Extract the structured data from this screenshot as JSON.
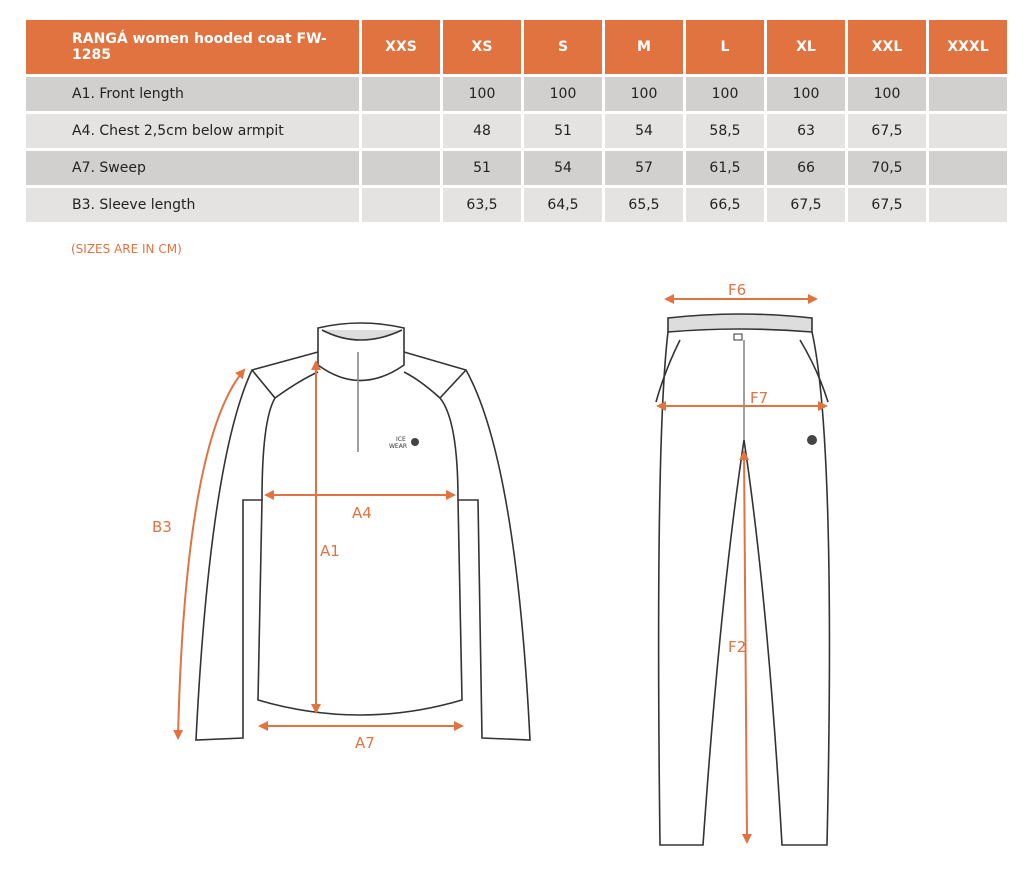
{
  "table": {
    "title": "RANGÁ women hooded coat FW-1285",
    "sizes": [
      "XXS",
      "XS",
      "S",
      "M",
      "L",
      "XL",
      "XXL",
      "XXXL"
    ],
    "rows": [
      {
        "label": "A1. Front length",
        "values": [
          "",
          "100",
          "100",
          "100",
          "100",
          "100",
          "100",
          ""
        ]
      },
      {
        "label": "A4. Chest 2,5cm below armpit",
        "values": [
          "",
          "48",
          "51",
          "54",
          "58,5",
          "63",
          "67,5",
          ""
        ]
      },
      {
        "label": "A7. Sweep",
        "values": [
          "",
          "51",
          "54",
          "57",
          "61,5",
          "66",
          "70,5",
          ""
        ]
      },
      {
        "label": "B3. Sleeve length",
        "values": [
          "",
          "63,5",
          "64,5",
          "65,5",
          "66,5",
          "67,5",
          "67,5",
          ""
        ]
      }
    ]
  },
  "note": "(SIZES ARE IN CM)",
  "diagram": {
    "jacket_labels": {
      "a1": "A1",
      "a4": "A4",
      "a7": "A7",
      "b3": "B3"
    },
    "pants_labels": {
      "f2": "F2",
      "f6": "F6",
      "f7": "F7"
    },
    "logo_text": [
      "ICE",
      "WEAR"
    ]
  },
  "colors": {
    "header": "#e07340",
    "accent": "#e07340",
    "row_dark": "#d1d0ce",
    "row_light": "#e4e3e1"
  }
}
